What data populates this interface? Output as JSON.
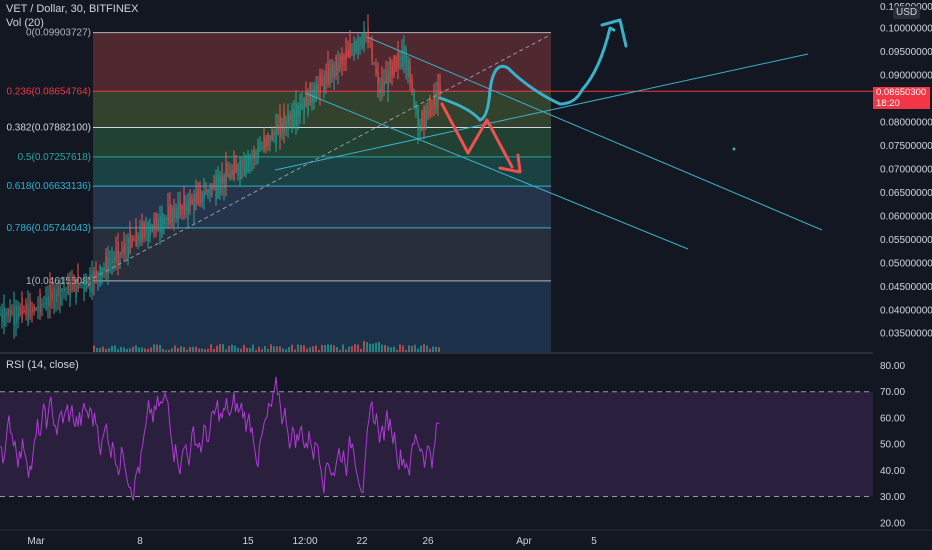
{
  "header": {
    "symbol": "VET / Dollar, 30, BITFINEX",
    "volume_label": "Vol (20)",
    "currency": "USD",
    "rsi_label": "RSI (14, close)"
  },
  "price_axis": {
    "ticks": [
      "0.10000000",
      "0.09500000",
      "0.09000000",
      "0.08000000",
      "0.07500000",
      "0.07000000",
      "0.06500000",
      "0.06000000",
      "0.05500000",
      "0.05000000",
      "0.04500000",
      "0.04000000",
      "0.03500000"
    ],
    "top_partial": "0.10500000",
    "current_price": "0.08650300",
    "countdown": "18:20"
  },
  "rsi_axis": {
    "ticks": [
      "80.00",
      "70.00",
      "60.00",
      "50.00",
      "40.00",
      "30.00",
      "20.00"
    ]
  },
  "time_axis": {
    "ticks": [
      "Mar",
      "8",
      "15",
      "12:00",
      "22",
      "26",
      "Apr",
      "5"
    ]
  },
  "fib_levels": [
    {
      "label": "0(0.09903727)",
      "color": "#b2b5be",
      "fill": "#5b2b33"
    },
    {
      "label": "0.236(0.08654764)",
      "color": "#f23645",
      "fill": "#3a4a2e"
    },
    {
      "label": "0.382(0.07882100)",
      "color": "#d1d4dc",
      "fill": "#244a36"
    },
    {
      "label": "0.5(0.07257618)",
      "color": "#26a69a",
      "fill": "#1c4a48"
    },
    {
      "label": "0.618(0.06633136)",
      "color": "#2bb3d0",
      "fill": "#2a3a52"
    },
    {
      "label": "0.786(0.05744043)",
      "color": "#2bb3d0",
      "fill": "#2e3240"
    },
    {
      "label": "1(0.04615508)",
      "color": "#b2b5be",
      "fill": "#1f3550"
    }
  ],
  "chart_data": {
    "type": "line",
    "title": "VET / Dollar, 30, BITFINEX",
    "y_range": [
      0.031,
      0.106
    ],
    "fib_retracement": [
      0.09903727,
      0.08654764,
      0.078821,
      0.07257618,
      0.06633136,
      0.05744043,
      0.04615508
    ],
    "series": [
      {
        "name": "VET / Dollar",
        "x": [
          "Mar",
          "8",
          "15",
          "12:00",
          "22",
          "26"
        ],
        "values": [
          0.039,
          0.055,
          0.068,
          0.082,
          0.098,
          0.0865
        ]
      },
      {
        "name": "RSI (14, close)",
        "y_range": [
          18,
          84
        ],
        "overbought": 70,
        "oversold": 30,
        "last": 58
      }
    ],
    "colors": {
      "up": "#26a69a",
      "down": "#ef5350",
      "rsi": "#b03ad6",
      "projection_bull": "#3ab0c9",
      "projection_bear": "#f0504f"
    }
  }
}
